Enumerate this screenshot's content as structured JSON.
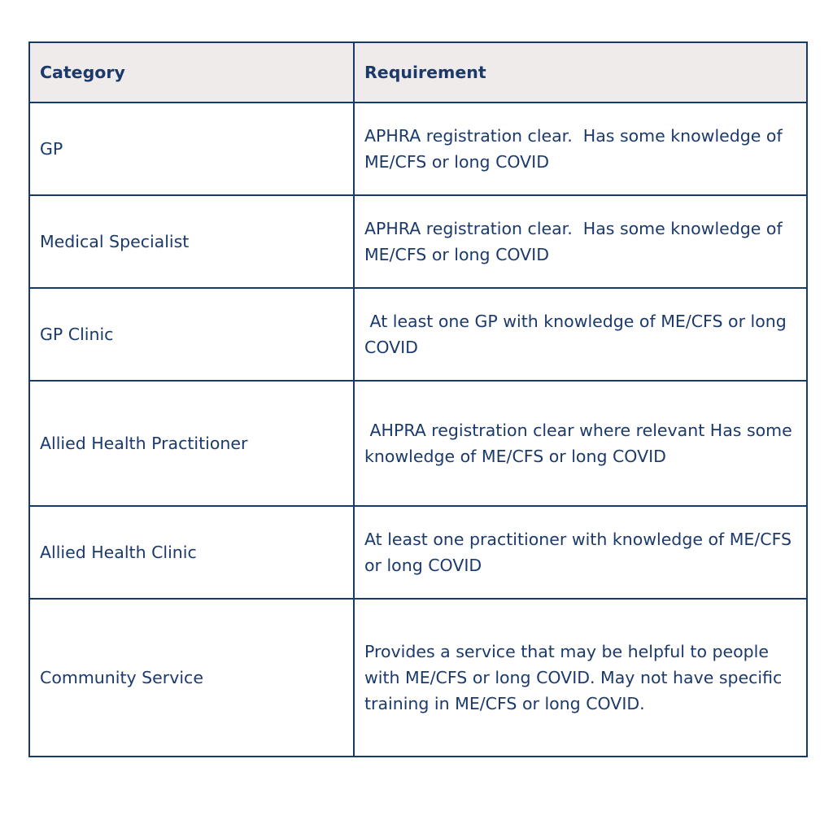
{
  "table": {
    "headers": [
      "Category",
      "Requirement"
    ],
    "rows": [
      {
        "category": "GP",
        "requirement": "APHRA registration clear.  Has some knowledge of ME/CFS or long COVID"
      },
      {
        "category": "Medical Specialist",
        "requirement": "APHRA registration clear.  Has some knowledge of ME/CFS or long COVID"
      },
      {
        "category": "GP Clinic",
        "requirement": " At least one GP with knowledge of ME/CFS or long COVID"
      },
      {
        "category": "Allied Health Practitioner",
        "requirement": " AHPRA registration clear where relevant Has some knowledge of ME/CFS or long COVID"
      },
      {
        "category": "Allied Health Clinic",
        "requirement": "At least one practitioner with knowledge of ME/CFS or long COVID"
      },
      {
        "category": "Community Service",
        "requirement": "Provides a service that may be helpful to people with ME/CFS or long COVID. May not have specific training in ME/CFS or long COVID."
      }
    ]
  },
  "colors": {
    "border": "#163a6a",
    "text": "#1b3a6b",
    "header_bg": "#efebeb"
  }
}
